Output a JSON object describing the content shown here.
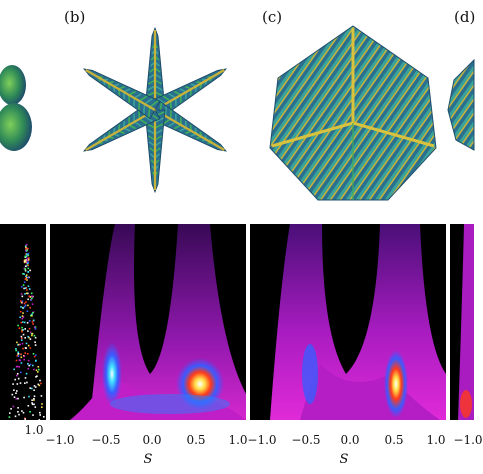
{
  "panels": [
    {
      "label": "(b)"
    },
    {
      "label": "(c)"
    },
    {
      "label": "(d)"
    }
  ],
  "axis": {
    "ticks_panel_a": [
      "1.0"
    ],
    "ticks_panel_b": [
      "−1.0",
      "−0.5",
      "0.0",
      "0.5",
      "1.0"
    ],
    "ticks_panel_c": [
      "−1.0",
      "−0.5",
      "0.0",
      "0.5",
      "1.0"
    ],
    "ticks_panel_d": [
      "−1.0"
    ],
    "xlabel": "S"
  },
  "colors": {
    "crystal_body": "#2b6f8f",
    "crystal_spine": "#c9b23a",
    "crystal_tip": "#3fae5a",
    "map_bg": "#000000",
    "map_low": "#5a1a8c",
    "map_mid": "#d01fd0",
    "map_high": "#ff2b1a"
  }
}
